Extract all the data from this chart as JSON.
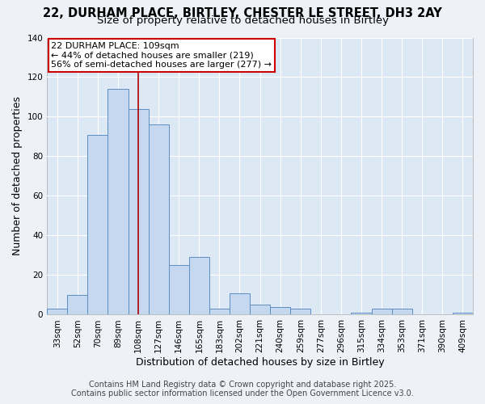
{
  "title_line1": "22, DURHAM PLACE, BIRTLEY, CHESTER LE STREET, DH3 2AY",
  "title_line2": "Size of property relative to detached houses in Birtley",
  "xlabel": "Distribution of detached houses by size in Birtley",
  "ylabel": "Number of detached properties",
  "categories": [
    "33sqm",
    "52sqm",
    "70sqm",
    "89sqm",
    "108sqm",
    "127sqm",
    "146sqm",
    "165sqm",
    "183sqm",
    "202sqm",
    "221sqm",
    "240sqm",
    "259sqm",
    "277sqm",
    "296sqm",
    "315sqm",
    "334sqm",
    "353sqm",
    "371sqm",
    "390sqm",
    "409sqm"
  ],
  "values": [
    3,
    10,
    91,
    114,
    104,
    96,
    25,
    29,
    3,
    11,
    5,
    4,
    3,
    0,
    0,
    1,
    3,
    3,
    0,
    0,
    1
  ],
  "bar_color": "#c5d8f0",
  "bar_edge_color": "#5b8ec4",
  "vline_x": 4,
  "vline_color": "#aa0000",
  "annotation_text": "22 DURHAM PLACE: 109sqm\n← 44% of detached houses are smaller (219)\n56% of semi-detached houses are larger (277) →",
  "annotation_box_color": "#ffffff",
  "annotation_box_edge": "#cc0000",
  "ylim": [
    0,
    140
  ],
  "yticks": [
    0,
    20,
    40,
    60,
    80,
    100,
    120,
    140
  ],
  "footer_line1": "Contains HM Land Registry data © Crown copyright and database right 2025.",
  "footer_line2": "Contains public sector information licensed under the Open Government Licence v3.0.",
  "bg_color": "#eef2f8",
  "plot_bg_color": "#dde8f5",
  "grid_color": "#ffffff",
  "title_fontsize": 10.5,
  "subtitle_fontsize": 9.5,
  "axis_label_fontsize": 9,
  "tick_fontsize": 7.5,
  "footer_fontsize": 7,
  "annotation_fontsize": 8
}
